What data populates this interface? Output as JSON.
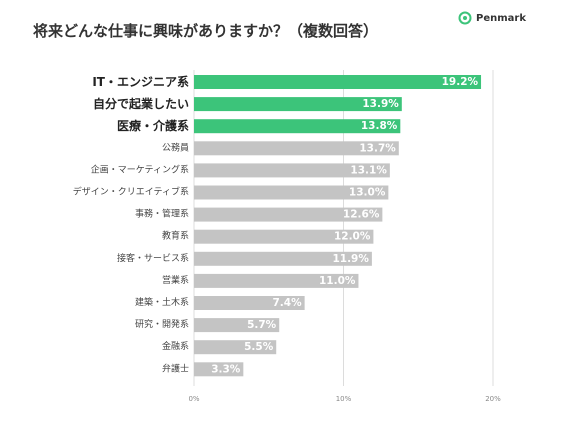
{
  "header": {
    "title": "将来どんな仕事に興味がありますか？（複数回答）",
    "brand": "Penmark",
    "brand_icon": "penmark-logo-icon"
  },
  "chart_data": {
    "type": "bar",
    "orientation": "horizontal",
    "title": "将来どんな仕事に興味がありますか？（複数回答）",
    "categories": [
      "IT・エンジニア系",
      "自分で起業したい",
      "医療・介護系",
      "公務員",
      "企画・マーケティング系",
      "デザイン・クリエイティブ系",
      "事務・管理系",
      "教育系",
      "接客・サービス系",
      "営業系",
      "建築・土木系",
      "研究・開発系",
      "金融系",
      "弁護士"
    ],
    "values": [
      19.2,
      13.9,
      13.8,
      13.7,
      13.1,
      13.0,
      12.6,
      12.0,
      11.9,
      11.0,
      7.4,
      5.7,
      5.5,
      3.3
    ],
    "value_labels": [
      "19.2%",
      "13.9%",
      "13.8%",
      "13.7%",
      "13.1%",
      "13.0%",
      "12.6%",
      "12.0%",
      "11.9%",
      "11.0%",
      "7.4%",
      "5.7%",
      "5.5%",
      "3.3%"
    ],
    "highlighted": [
      true,
      true,
      true,
      false,
      false,
      false,
      false,
      false,
      false,
      false,
      false,
      false,
      false,
      false
    ],
    "xlim": [
      0,
      20
    ],
    "xticks": [
      0,
      10,
      20
    ],
    "xtick_labels": [
      "0%",
      "10%",
      "20%"
    ],
    "grid": true,
    "colors": {
      "highlight": "#3cc47a",
      "default": "#c4c4c4",
      "grid": "#dcdcdc"
    }
  }
}
